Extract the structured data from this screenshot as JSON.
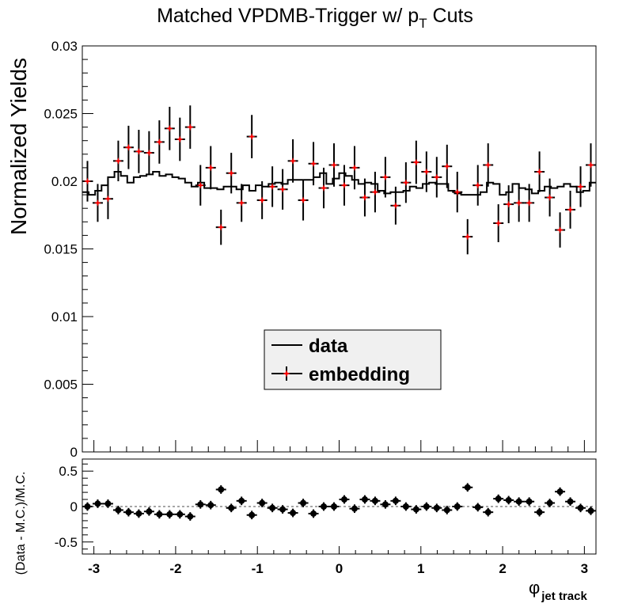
{
  "chart_data": [
    {
      "type": "line",
      "title": "Matched VPDMB-Trigger w/ p",
      "title_sub": "T",
      "title_suffix": " Cuts",
      "ylabel": "Normalized Yields",
      "xlim": [
        -3.1416,
        3.1416
      ],
      "ylim": [
        0,
        0.03
      ],
      "yticks": [
        0,
        0.005,
        0.01,
        0.015,
        0.02,
        0.025,
        0.03
      ],
      "ytick_labels": [
        "0",
        "0.005",
        "0.01",
        "0.015",
        "0.02",
        "0.025",
        "0.03"
      ],
      "colors": {
        "data": "#000000",
        "embedding": "#ff0000",
        "legend_bg": "#f0f0f0"
      },
      "legend": {
        "placement": "center",
        "entries": [
          "data",
          "embedding"
        ]
      },
      "series": [
        {
          "name": "data",
          "style": "step-histogram",
          "values": [
            0.0192,
            0.019,
            0.0193,
            0.0197,
            0.0203,
            0.0207,
            0.0204,
            0.0199,
            0.0203,
            0.0204,
            0.0205,
            0.0207,
            0.0204,
            0.0205,
            0.0203,
            0.0202,
            0.0199,
            0.0196,
            0.0199,
            0.0195,
            0.0195,
            0.0194,
            0.0196,
            0.0196,
            0.0194,
            0.0197,
            0.0193,
            0.0197,
            0.0196,
            0.0198,
            0.0199,
            0.0198,
            0.0201,
            0.0201,
            0.0201,
            0.0201,
            0.0203,
            0.0206,
            0.0198,
            0.0202,
            0.0206,
            0.0204,
            0.0201,
            0.0198,
            0.0199,
            0.0198,
            0.0193,
            0.0191,
            0.0192,
            0.0192,
            0.0193,
            0.0196,
            0.0195,
            0.0198,
            0.0199,
            0.0198,
            0.0198,
            0.0193,
            0.0191,
            0.019,
            0.019,
            0.019,
            0.0192,
            0.0199,
            0.0198,
            0.019,
            0.0192,
            0.0198,
            0.0195,
            0.0194,
            0.0191,
            0.0193,
            0.0196,
            0.0195,
            0.0196,
            0.0198,
            0.0196,
            0.0192,
            0.0193,
            0.0199
          ]
        },
        {
          "name": "embedding",
          "style": "points-with-errors",
          "values": [
            0.02,
            0.0184,
            0.0187,
            0.0215,
            0.0225,
            0.0222,
            0.0221,
            0.0229,
            0.0239,
            0.0231,
            0.024,
            0.0197,
            0.021,
            0.0166,
            0.0206,
            0.0184,
            0.0233,
            0.0186,
            0.0196,
            0.0194,
            0.0215,
            0.0186,
            0.0213,
            0.0195,
            0.0212,
            0.0197,
            0.021,
            0.0188,
            0.0192,
            0.0203,
            0.0182,
            0.0199,
            0.0214,
            0.0207,
            0.0203,
            0.0211,
            0.0192,
            0.0159,
            0.0197,
            0.0212,
            0.0169,
            0.0183,
            0.0184,
            0.0184,
            0.0207,
            0.0188,
            0.0164,
            0.0179,
            0.0196,
            0.0212
          ],
          "errors": [
            0.0015,
            0.0014,
            0.0015,
            0.0015,
            0.0016,
            0.0016,
            0.0016,
            0.0016,
            0.0016,
            0.0016,
            0.0016,
            0.0015,
            0.0016,
            0.0013,
            0.0015,
            0.0014,
            0.0016,
            0.0014,
            0.0015,
            0.0015,
            0.0016,
            0.0015,
            0.0016,
            0.0015,
            0.0016,
            0.0015,
            0.0016,
            0.0014,
            0.0015,
            0.0015,
            0.0014,
            0.0015,
            0.0016,
            0.0015,
            0.0015,
            0.0016,
            0.0015,
            0.0013,
            0.0015,
            0.0016,
            0.0014,
            0.0014,
            0.0014,
            0.0014,
            0.0015,
            0.0014,
            0.0013,
            0.0014,
            0.0015,
            0.0016
          ]
        }
      ]
    },
    {
      "type": "scatter",
      "ylabel": "(Data - M.C.)/M.C.",
      "xlabel": "φ",
      "xlabel_sub": "jet track",
      "xlim": [
        -3.1416,
        3.1416
      ],
      "ylim": [
        -0.67,
        0.67
      ],
      "xticks": [
        -3,
        -2,
        -1,
        0,
        1,
        2,
        3
      ],
      "xtick_labels": [
        "-3",
        "-2",
        "-1",
        "0",
        "1",
        "2",
        "3"
      ],
      "yticks": [
        -0.5,
        0,
        0.5
      ],
      "ytick_labels": [
        "-0.5",
        "0",
        "0.5"
      ],
      "reference_line": 0,
      "colors": {
        "points": "#000000",
        "reference_line": "#888888"
      },
      "series": [
        {
          "values": [
            0.0,
            0.04,
            0.04,
            -0.05,
            -0.08,
            -0.1,
            -0.07,
            -0.11,
            -0.11,
            -0.11,
            -0.14,
            0.03,
            0.02,
            0.24,
            -0.02,
            0.08,
            -0.12,
            0.05,
            -0.02,
            -0.04,
            -0.09,
            0.05,
            -0.1,
            0.0,
            0.0,
            0.1,
            -0.03,
            0.1,
            0.08,
            0.03,
            0.08,
            0.0,
            -0.04,
            0.0,
            -0.02,
            -0.05,
            0.0,
            0.27,
            -0.01,
            -0.08,
            0.11,
            0.09,
            0.07,
            0.07,
            -0.08,
            0.05,
            0.21,
            0.07,
            -0.02,
            -0.06
          ],
          "errors": [
            0.06,
            0.06,
            0.06,
            0.06,
            0.06,
            0.06,
            0.06,
            0.06,
            0.06,
            0.06,
            0.06,
            0.06,
            0.06,
            0.06,
            0.06,
            0.06,
            0.06,
            0.06,
            0.06,
            0.06,
            0.06,
            0.06,
            0.06,
            0.06,
            0.06,
            0.06,
            0.06,
            0.06,
            0.06,
            0.06,
            0.06,
            0.06,
            0.06,
            0.06,
            0.06,
            0.06,
            0.06,
            0.06,
            0.06,
            0.06,
            0.06,
            0.06,
            0.06,
            0.06,
            0.06,
            0.06,
            0.06,
            0.06,
            0.06,
            0.06
          ]
        }
      ]
    }
  ]
}
